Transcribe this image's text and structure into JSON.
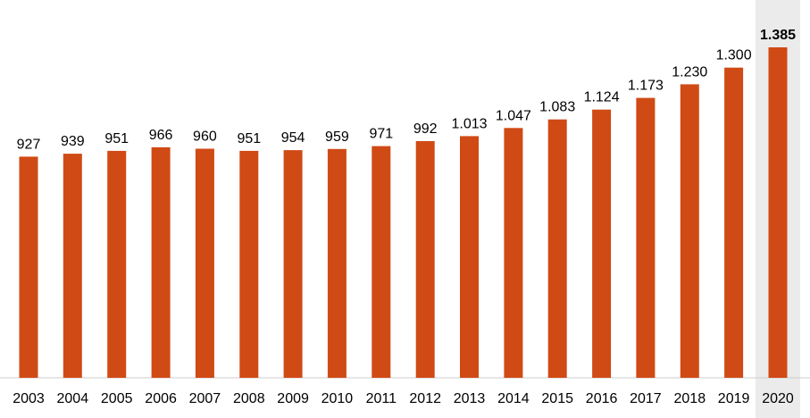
{
  "chart_data": {
    "type": "bar",
    "title": "",
    "xlabel": "",
    "ylabel": "",
    "categories": [
      "2003",
      "2004",
      "2005",
      "2006",
      "2007",
      "2008",
      "2009",
      "2010",
      "2011",
      "2012",
      "2013",
      "2014",
      "2015",
      "2016",
      "2017",
      "2018",
      "2019",
      "2020"
    ],
    "values": [
      927,
      939,
      951,
      966,
      960,
      951,
      954,
      959,
      971,
      992,
      1013,
      1047,
      1083,
      1124,
      1173,
      1230,
      1300,
      1385
    ],
    "value_labels": [
      "927",
      "939",
      "951",
      "966",
      "960",
      "951",
      "954",
      "959",
      "971",
      "992",
      "1.013",
      "1.047",
      "1.083",
      "1.124",
      "1.173",
      "1.230",
      "1.300",
      "1.385"
    ],
    "ylim": [
      0,
      1385
    ],
    "grid": false,
    "legend": "none",
    "highlighted_category": "2020",
    "bar_color": "#D04A15",
    "highlight_background": "#EBEBEB"
  }
}
